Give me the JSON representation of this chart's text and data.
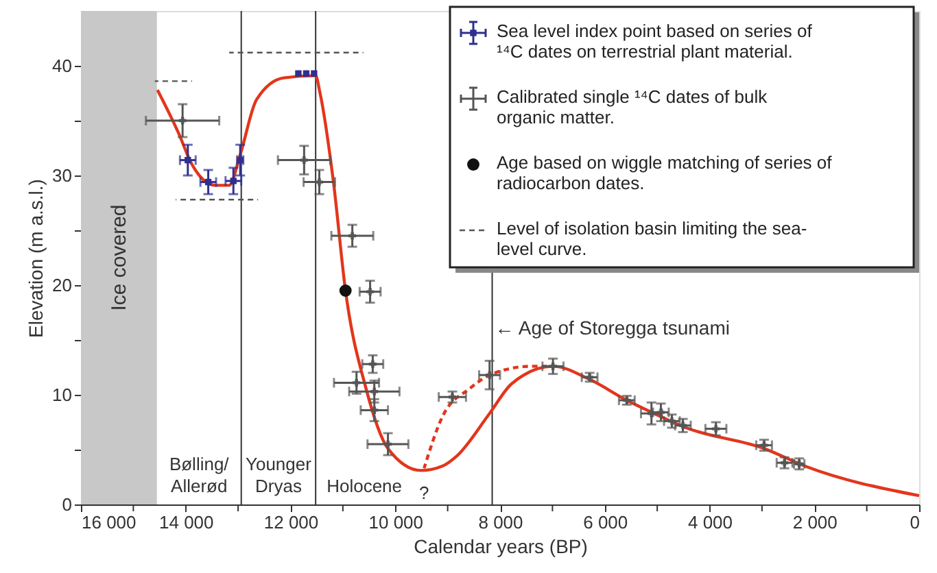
{
  "chart_data": {
    "type": "line",
    "xlabel": "Calendar years (BP)",
    "ylabel": "Elevation (m a.s.l.)",
    "xlim": [
      16000,
      0
    ],
    "ylim": [
      0,
      45
    ],
    "xticks": [
      {
        "value": 16000,
        "label": "16 000"
      },
      {
        "value": 15000,
        "label": null
      },
      {
        "value": 14000,
        "label": "14 000"
      },
      {
        "value": 13000,
        "label": null
      },
      {
        "value": 12000,
        "label": "12 000"
      },
      {
        "value": 11000,
        "label": null
      },
      {
        "value": 10000,
        "label": "10 000"
      },
      {
        "value": 9000,
        "label": null
      },
      {
        "value": 8000,
        "label": "8 000"
      },
      {
        "value": 7000,
        "label": null
      },
      {
        "value": 6000,
        "label": "6 000"
      },
      {
        "value": 5000,
        "label": null
      },
      {
        "value": 4000,
        "label": "4 000"
      },
      {
        "value": 3000,
        "label": null
      },
      {
        "value": 2000,
        "label": "2 000"
      },
      {
        "value": 1000,
        "label": null
      },
      0
    ],
    "yticks": [
      0,
      {
        "value": 5,
        "label": null
      },
      10,
      {
        "value": 15,
        "label": null
      },
      20,
      {
        "value": 25,
        "label": null
      },
      30,
      {
        "value": 35,
        "label": null
      },
      40
    ],
    "legend": "top right",
    "series": [
      {
        "color": "#e2361c",
        "line_style": "solid",
        "x": [
          14540,
          14140,
          13880,
          13435,
          13170,
          12960,
          12650,
          12130,
          11520,
          11440,
          11180,
          10950,
          10560,
          10140,
          9510,
          9100,
          8830,
          8200,
          7780,
          6990,
          6290,
          5580,
          5060,
          4450,
          2960,
          2180,
          0
        ],
        "values": [
          37.8,
          33.9,
          31,
          29.1,
          29.1,
          31.9,
          36.9,
          38.9,
          39.1,
          37.6,
          29.4,
          19.5,
          10.6,
          5.1,
          3.1,
          3.5,
          4.4,
          8.3,
          11,
          12.6,
          11.4,
          9.5,
          8.3,
          7,
          5.1,
          3.5,
          0.8
        ]
      },
      {
        "type": "line",
        "color": "#e2361c",
        "line_style": "dashed",
        "x": [
          9450,
          9090,
          8570,
          8200,
          7410,
          6990
        ],
        "values": [
          3.3,
          8.1,
          10.6,
          11.8,
          12.6,
          12.6
        ]
      },
      {
        "type": "scatter",
        "name": "Sea level index point based on series of ¹⁴C dates on terrestrial plant material.",
        "color": "#2e2f8f",
        "marker": "square",
        "x": [
          13960,
          13570,
          13090,
          12960,
          11850,
          11700,
          11550
        ],
        "values": [
          31.4,
          29.4,
          29.5,
          31.4,
          39.3,
          39.3,
          39.3
        ],
        "errors": [
          1.4,
          1.1,
          1.2,
          1.4,
          null,
          null,
          null
        ],
        "xerrors": [
          150,
          150,
          150,
          60,
          null,
          null,
          null
        ]
      },
      {
        "type": "scatter",
        "name": "Calibrated single ¹⁴C dates of bulk organic matter.",
        "color": "#555555",
        "marker": "cross",
        "x": [
          14060,
          11740,
          11450,
          10820,
          10480,
          10430,
          10740,
          10400,
          10400,
          10140,
          8910,
          8200,
          6990,
          6290,
          5580,
          5110,
          4930,
          4720,
          4510,
          3880,
          2960,
          2570,
          2290
        ],
        "values": [
          35,
          31.4,
          29.4,
          24.5,
          19.4,
          12.8,
          11.1,
          10.3,
          8.6,
          5.5,
          9.8,
          11.8,
          12.6,
          11.6,
          9.5,
          8.3,
          8.4,
          7.6,
          7.2,
          6.9,
          5.4,
          3.8,
          3.7
        ],
        "errors": [
          1.5,
          1.3,
          1.1,
          1,
          1,
          0.8,
          1,
          1,
          1,
          1,
          0.5,
          1.3,
          0.7,
          0.4,
          0.4,
          1,
          0.8,
          0.6,
          0.6,
          0.6,
          0.5,
          0.5,
          0.5
        ],
        "xerrors": [
          700,
          500,
          300,
          400,
          200,
          200,
          430,
          480,
          260,
          390,
          260,
          200,
          200,
          150,
          150,
          200,
          150,
          150,
          150,
          200,
          150,
          150,
          100
        ]
      },
      {
        "type": "scatter",
        "name": "Age based on wiggle matching of series of radiocarbon dates.",
        "color": "#111111",
        "marker": "circle",
        "x": [
          10950
        ],
        "values": [
          19.5
        ]
      },
      {
        "type": "line",
        "name": "Level of isolation basin limiting the sea-level curve.",
        "color": "#555555",
        "line_style": "dashed",
        "x": [
          14590,
          13880
        ],
        "values": [
          38.6,
          38.6
        ]
      },
      {
        "type": "line",
        "color": "#555555",
        "line_style": "dashed",
        "x": [
          14190,
          12620
        ],
        "values": [
          27.8,
          27.8
        ]
      },
      {
        "type": "line",
        "color": "#555555",
        "line_style": "dashed",
        "x": [
          13170,
          10610
        ],
        "values": [
          41.2,
          41.2
        ]
      }
    ],
    "bands": [
      {
        "axis": "x",
        "from": 16000,
        "to": 14550,
        "label": "Ice covered",
        "color": "#c8c8c8"
      }
    ],
    "ref_lines": [
      {
        "axis": "x",
        "value": 12940,
        "color": "#333333"
      },
      {
        "axis": "x",
        "value": 11520,
        "color": "#333333"
      },
      {
        "axis": "x",
        "value": 8150,
        "label": "← Age of Storegga tsunami",
        "color": "#333333"
      }
    ],
    "annotations": [
      "Bølling/\nAllerød",
      "Younger\nDryas",
      "Holocene",
      "?"
    ]
  }
}
